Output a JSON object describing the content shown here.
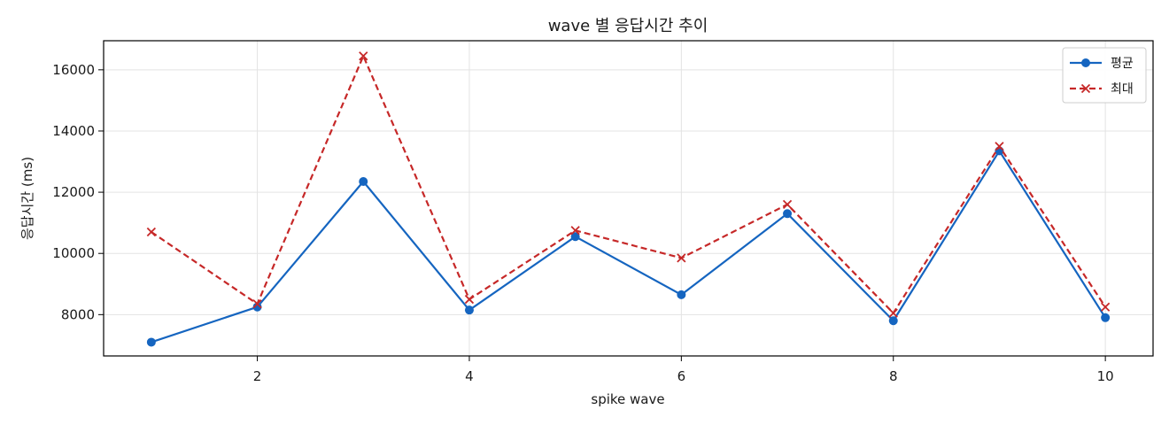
{
  "chart_data": {
    "type": "line",
    "title": "wave 별 응답시간 추이",
    "xlabel": "spike wave",
    "ylabel": "응답시간 (ms)",
    "x": [
      1,
      2,
      3,
      4,
      5,
      6,
      7,
      8,
      9,
      10
    ],
    "xlim": [
      0.55,
      10.45
    ],
    "ylim": [
      6650,
      16950
    ],
    "xticks": [
      2,
      4,
      6,
      8,
      10
    ],
    "yticks": [
      8000,
      10000,
      12000,
      14000,
      16000
    ],
    "grid": true,
    "legend_position": "top-right",
    "series": [
      {
        "name": "평균",
        "color": "#1565c0",
        "marker": "circle",
        "line_style": "solid",
        "values": [
          7100,
          8250,
          12350,
          8150,
          10550,
          8650,
          11300,
          7800,
          13350,
          7900
        ]
      },
      {
        "name": "최대",
        "color": "#c62828",
        "marker": "x",
        "line_style": "dashed",
        "values": [
          10700,
          8350,
          16450,
          8500,
          10750,
          9850,
          11600,
          8050,
          13500,
          8250
        ]
      }
    ]
  }
}
